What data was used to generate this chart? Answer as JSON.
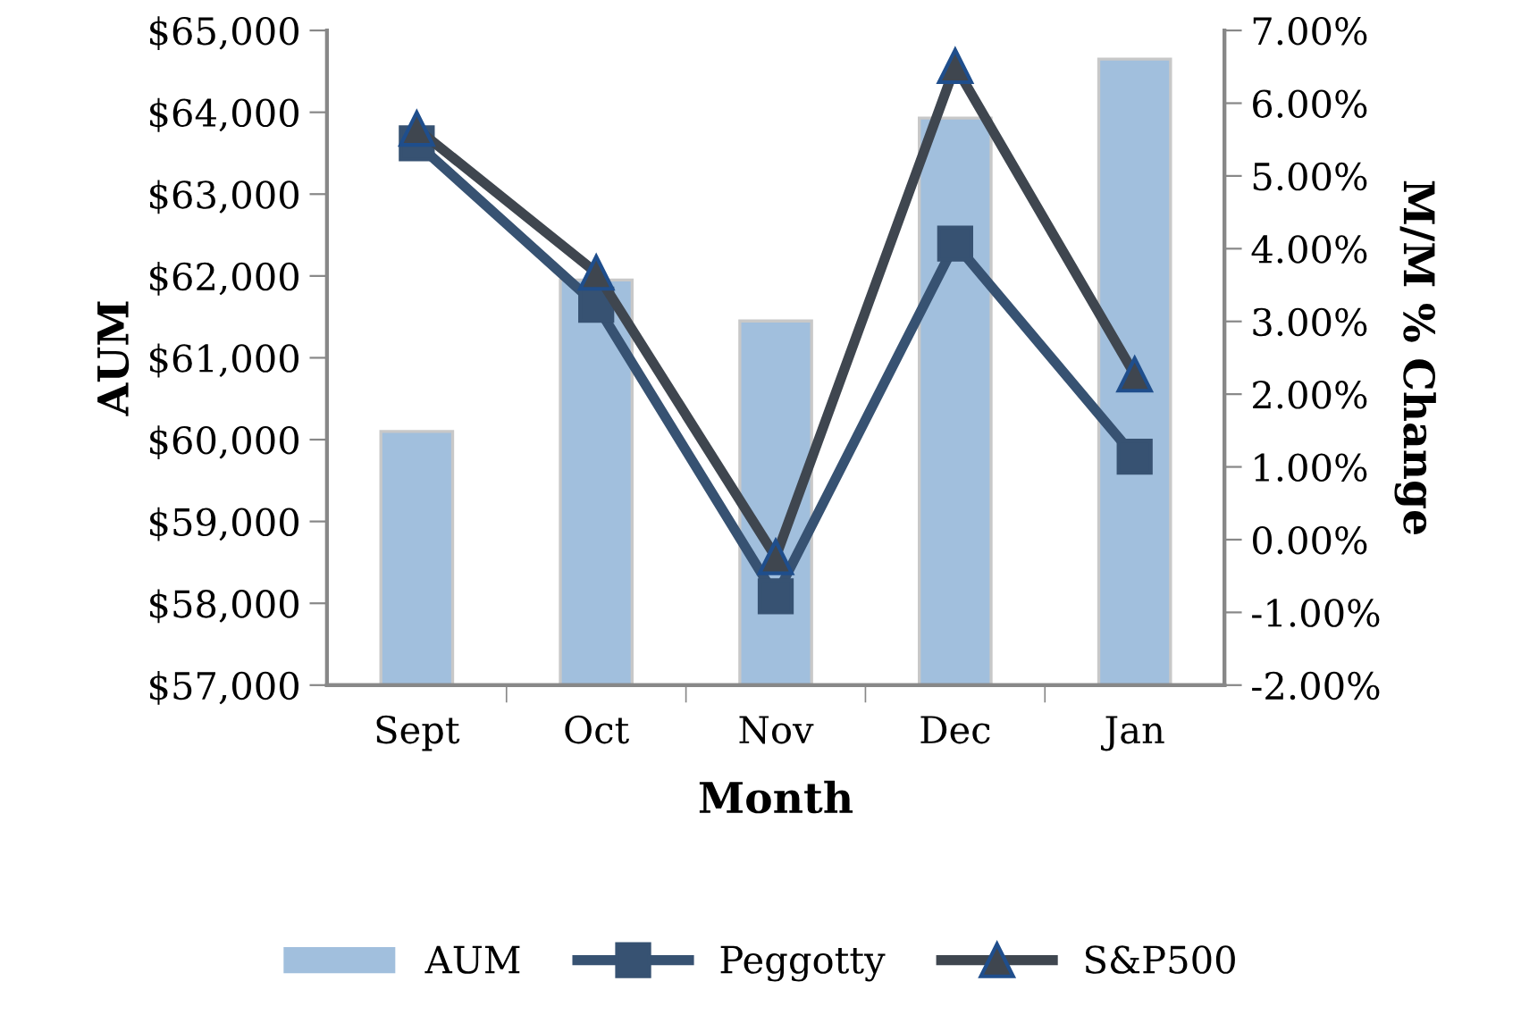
{
  "chart_data": {
    "type": "bar",
    "xlabel": "Month",
    "ylabel": "AUM",
    "y2label": "M/M % Change",
    "categories": [
      "Sept",
      "Oct",
      "Nov",
      "Dec",
      "Jan"
    ],
    "series": [
      {
        "name": "AUM",
        "color": "#a1bfdd",
        "values": [
          60100,
          61950,
          61450,
          63930,
          64650
        ]
      },
      {
        "name": "Peggotty",
        "type": "line",
        "axis": "y2",
        "marker": "square",
        "color": "#375272",
        "values": [
          5.45,
          3.23,
          -0.78,
          4.07,
          1.14
        ]
      },
      {
        "name": "S&P500",
        "type": "line",
        "axis": "y2",
        "marker": "triangle",
        "color": "#3f464f",
        "values": [
          5.65,
          3.67,
          -0.24,
          6.51,
          2.27
        ]
      }
    ],
    "ylim": [
      57000,
      65000
    ],
    "yticks": [
      {
        "value": 57000,
        "label": "$57,000"
      },
      {
        "value": 58000,
        "label": "$58,000"
      },
      {
        "value": 59000,
        "label": "$59,000"
      },
      {
        "value": 60000,
        "label": "$60,000"
      },
      {
        "value": 61000,
        "label": "$61,000"
      },
      {
        "value": 62000,
        "label": "$62,000"
      },
      {
        "value": 63000,
        "label": "$63,000"
      },
      {
        "value": 64000,
        "label": "$64,000"
      },
      {
        "value": 65000,
        "label": "$65,000"
      }
    ],
    "y2lim": [
      -2,
      7
    ],
    "y2ticks": [
      {
        "value": -2,
        "label": "-2.00%"
      },
      {
        "value": -1,
        "label": "-1.00%"
      },
      {
        "value": 0,
        "label": "0.00%"
      },
      {
        "value": 1,
        "label": "1.00%"
      },
      {
        "value": 2,
        "label": "2.00%"
      },
      {
        "value": 3,
        "label": "3.00%"
      },
      {
        "value": 4,
        "label": "4.00%"
      },
      {
        "value": 5,
        "label": "5.00%"
      },
      {
        "value": 6,
        "label": "6.00%"
      },
      {
        "value": 7,
        "label": "7.00%"
      }
    ],
    "grid": false,
    "legend": "bottom"
  }
}
